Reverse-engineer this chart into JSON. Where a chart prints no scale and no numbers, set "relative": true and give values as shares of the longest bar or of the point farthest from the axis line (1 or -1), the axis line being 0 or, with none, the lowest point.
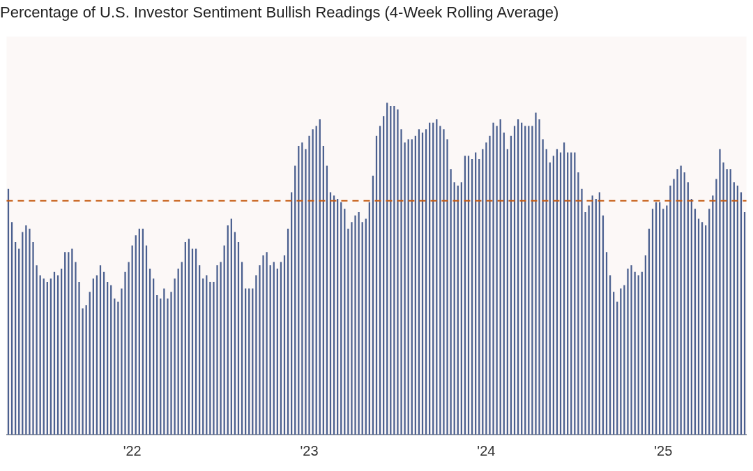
{
  "chart_data": {
    "type": "bar",
    "title": "Percentage of U.S. Investor Sentiment Bullish Readings (4-Week Rolling Average)",
    "relative": true,
    "legend": false,
    "grid": false,
    "categories": [
      null,
      null,
      null,
      null,
      null,
      null,
      null,
      null,
      null,
      null,
      null,
      null,
      null,
      null,
      null,
      null,
      null,
      null,
      null,
      null,
      null,
      null,
      null,
      null,
      null,
      null,
      null,
      null,
      null,
      null,
      null,
      null,
      null,
      null,
      null,
      "'22",
      null,
      null,
      null,
      null,
      null,
      null,
      null,
      null,
      null,
      null,
      null,
      null,
      null,
      null,
      null,
      null,
      null,
      null,
      null,
      null,
      null,
      null,
      null,
      null,
      null,
      null,
      null,
      null,
      null,
      null,
      null,
      null,
      null,
      null,
      null,
      null,
      null,
      null,
      null,
      null,
      null,
      null,
      null,
      null,
      null,
      null,
      null,
      null,
      null,
      "'23",
      null,
      null,
      null,
      null,
      null,
      null,
      null,
      null,
      null,
      null,
      null,
      null,
      null,
      null,
      null,
      null,
      null,
      null,
      null,
      null,
      null,
      null,
      null,
      null,
      null,
      null,
      null,
      null,
      null,
      null,
      null,
      null,
      null,
      null,
      null,
      null,
      null,
      null,
      null,
      null,
      null,
      null,
      null,
      null,
      null,
      null,
      null,
      null,
      null,
      "'24",
      null,
      null,
      null,
      null,
      null,
      null,
      null,
      null,
      null,
      null,
      null,
      null,
      null,
      null,
      null,
      null,
      null,
      null,
      null,
      null,
      null,
      null,
      null,
      null,
      null,
      null,
      null,
      null,
      null,
      null,
      null,
      null,
      null,
      null,
      null,
      null,
      null,
      null,
      null,
      null,
      null,
      null,
      null,
      null,
      null,
      null,
      null,
      null,
      null,
      "'25",
      null,
      null,
      null,
      null,
      null,
      null,
      null,
      null,
      null,
      null,
      null,
      null,
      null,
      null,
      null,
      null,
      null,
      null,
      null,
      null,
      null,
      null,
      null
    ],
    "series": [
      {
        "color": "#4a5f8f",
        "values": [
          0.74,
          0.64,
          0.58,
          0.56,
          0.61,
          0.63,
          0.62,
          0.58,
          0.51,
          0.48,
          0.47,
          0.46,
          0.47,
          0.49,
          0.48,
          0.5,
          0.55,
          0.55,
          0.56,
          0.52,
          0.46,
          0.38,
          0.39,
          0.43,
          0.47,
          0.48,
          0.51,
          0.49,
          0.46,
          0.45,
          0.41,
          0.4,
          0.44,
          0.49,
          0.52,
          0.57,
          0.6,
          0.62,
          0.62,
          0.57,
          0.5,
          0.47,
          0.42,
          0.41,
          0.44,
          0.41,
          0.43,
          0.47,
          0.5,
          0.52,
          0.58,
          0.59,
          0.56,
          0.56,
          0.51,
          0.47,
          0.48,
          0.46,
          0.46,
          0.51,
          0.52,
          0.57,
          0.63,
          0.65,
          0.61,
          0.58,
          0.52,
          0.44,
          0.44,
          0.44,
          0.48,
          0.51,
          0.54,
          0.55,
          0.51,
          0.52,
          0.5,
          0.52,
          0.54,
          0.62,
          0.73,
          0.81,
          0.87,
          0.88,
          0.86,
          0.9,
          0.92,
          0.93,
          0.95,
          0.87,
          0.81,
          0.73,
          0.72,
          0.71,
          0.7,
          0.68,
          0.62,
          0.64,
          0.66,
          0.67,
          0.64,
          0.65,
          0.7,
          0.78,
          0.9,
          0.93,
          0.96,
          1.0,
          0.99,
          0.99,
          0.98,
          0.92,
          0.88,
          0.89,
          0.89,
          0.9,
          0.92,
          0.91,
          0.92,
          0.94,
          0.94,
          0.95,
          0.93,
          0.92,
          0.89,
          0.8,
          0.76,
          0.75,
          0.76,
          0.84,
          0.84,
          0.83,
          0.85,
          0.83,
          0.86,
          0.88,
          0.9,
          0.94,
          0.93,
          0.95,
          0.91,
          0.86,
          0.9,
          0.93,
          0.95,
          0.94,
          0.93,
          0.93,
          0.93,
          0.97,
          0.95,
          0.89,
          0.86,
          0.82,
          0.84,
          0.86,
          0.85,
          0.88,
          0.85,
          0.85,
          0.85,
          0.79,
          0.74,
          0.67,
          0.69,
          0.72,
          0.71,
          0.73,
          0.66,
          0.55,
          0.48,
          0.43,
          0.4,
          0.44,
          0.45,
          0.5,
          0.51,
          0.49,
          0.48,
          0.49,
          0.54,
          0.62,
          0.68,
          0.7,
          0.7,
          0.68,
          0.69,
          0.75,
          0.77,
          0.8,
          0.81,
          0.79,
          0.76,
          0.71,
          0.68,
          0.65,
          0.64,
          0.63,
          0.68,
          0.72,
          0.77,
          0.86,
          0.82,
          0.8,
          0.8,
          0.76,
          0.75,
          0.73,
          0.67
        ]
      }
    ],
    "ref_lines": [
      {
        "axis": "y",
        "value": 0.705,
        "color": "#c55a11",
        "line_style": "dashed"
      }
    ]
  }
}
